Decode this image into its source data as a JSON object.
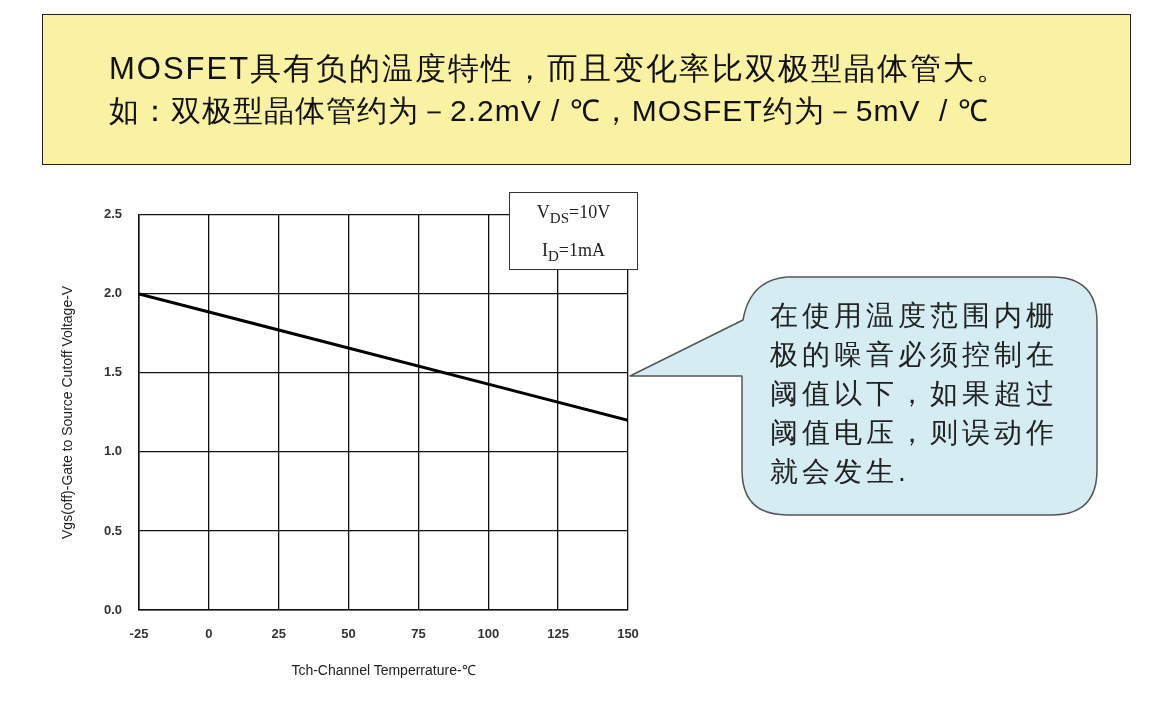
{
  "chart_data": {
    "type": "line",
    "title": "MOSFET具有负的温度特性，而且变化率比双极型晶体管大。",
    "subtitle": "如：双极型晶体管约为－2.2mV / ℃，MOSFET约为－5mV  / ℃",
    "xlabel": "Tch-Channel Temperrature-℃",
    "ylabel": "Vgs(off)-Gate to Source Cutoff Voltage-V",
    "x": [
      -25,
      150
    ],
    "series": [
      {
        "color": "#000000",
        "values": [
          2.0,
          1.2
        ]
      }
    ],
    "xlim": [
      -25,
      150
    ],
    "xticks": [
      -25,
      0,
      25,
      50,
      75,
      100,
      125,
      150
    ],
    "ylim": [
      0,
      2.5
    ],
    "yticks": [
      {
        "value": 0,
        "label": "0.0"
      },
      {
        "value": 0.5,
        "label": "0.5"
      },
      {
        "value": 1,
        "label": "1.0"
      },
      {
        "value": 1.5,
        "label": "1.5"
      },
      {
        "value": 2,
        "label": "2.0"
      },
      {
        "value": 2.5,
        "label": "2.5"
      }
    ],
    "grid": true,
    "line_style": "solid",
    "annotations": [
      "V$_{DS}$=10V",
      "I$_{D}$=1mA",
      "在使用温度范围内栅极的噪音必须控制在阈值以下，如果超过阈值电压，则误动作就会发生."
    ]
  }
}
